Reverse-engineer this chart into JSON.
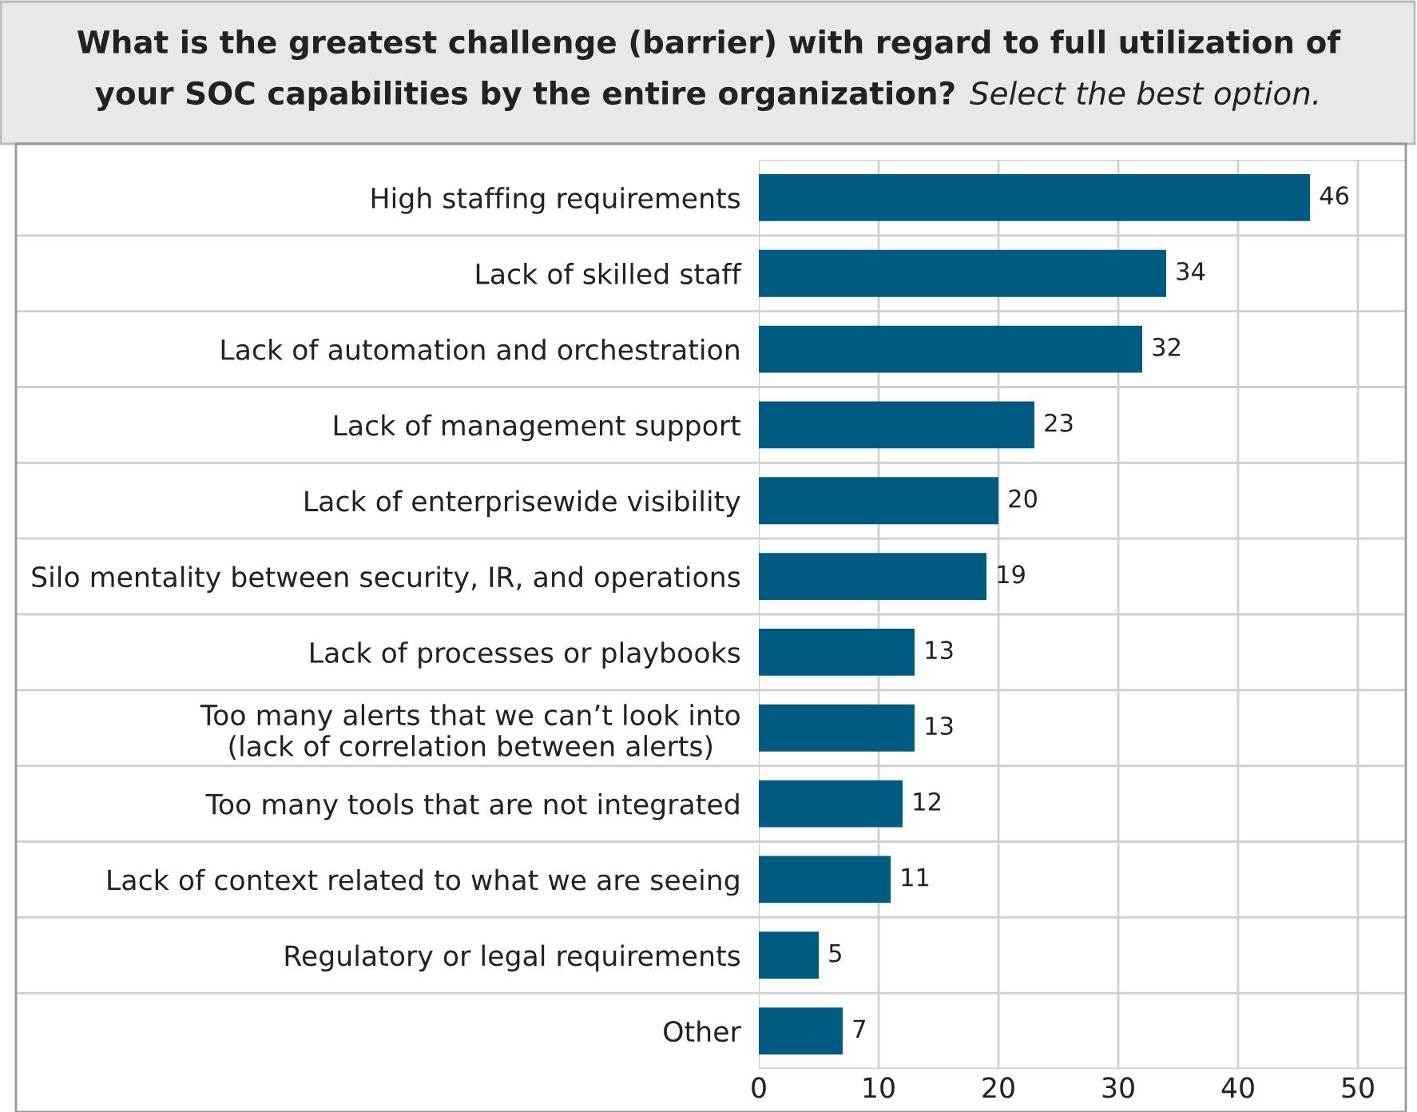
{
  "chart_data": {
    "type": "bar",
    "orientation": "horizontal",
    "title": "What is the greatest challenge (barrier) with regard to full utilization of\nyour SOC capabilities by the entire organization?",
    "subtitle": "Select the best option.",
    "categories": [
      "High staffing requirements",
      "Lack of skilled staff",
      "Lack of automation and orchestration",
      "Lack of management support",
      "Lack of enterprisewide visibility",
      "Silo mentality between security, IR, and operations",
      "Lack of processes or playbooks",
      "Too many alerts that we can’t look into\n(lack of correlation between alerts)",
      "Too many tools that are not integrated",
      "Lack of context related to what we are seeing",
      "Regulatory or legal requirements",
      "Other"
    ],
    "values": [
      46,
      34,
      32,
      23,
      20,
      19,
      13,
      13,
      12,
      11,
      5,
      7
    ],
    "color": "#005b82",
    "data_labels": true,
    "xlim": [
      0,
      54
    ],
    "xticks": [
      0,
      10,
      20,
      30,
      40,
      50
    ],
    "grid": true,
    "legend": false
  }
}
